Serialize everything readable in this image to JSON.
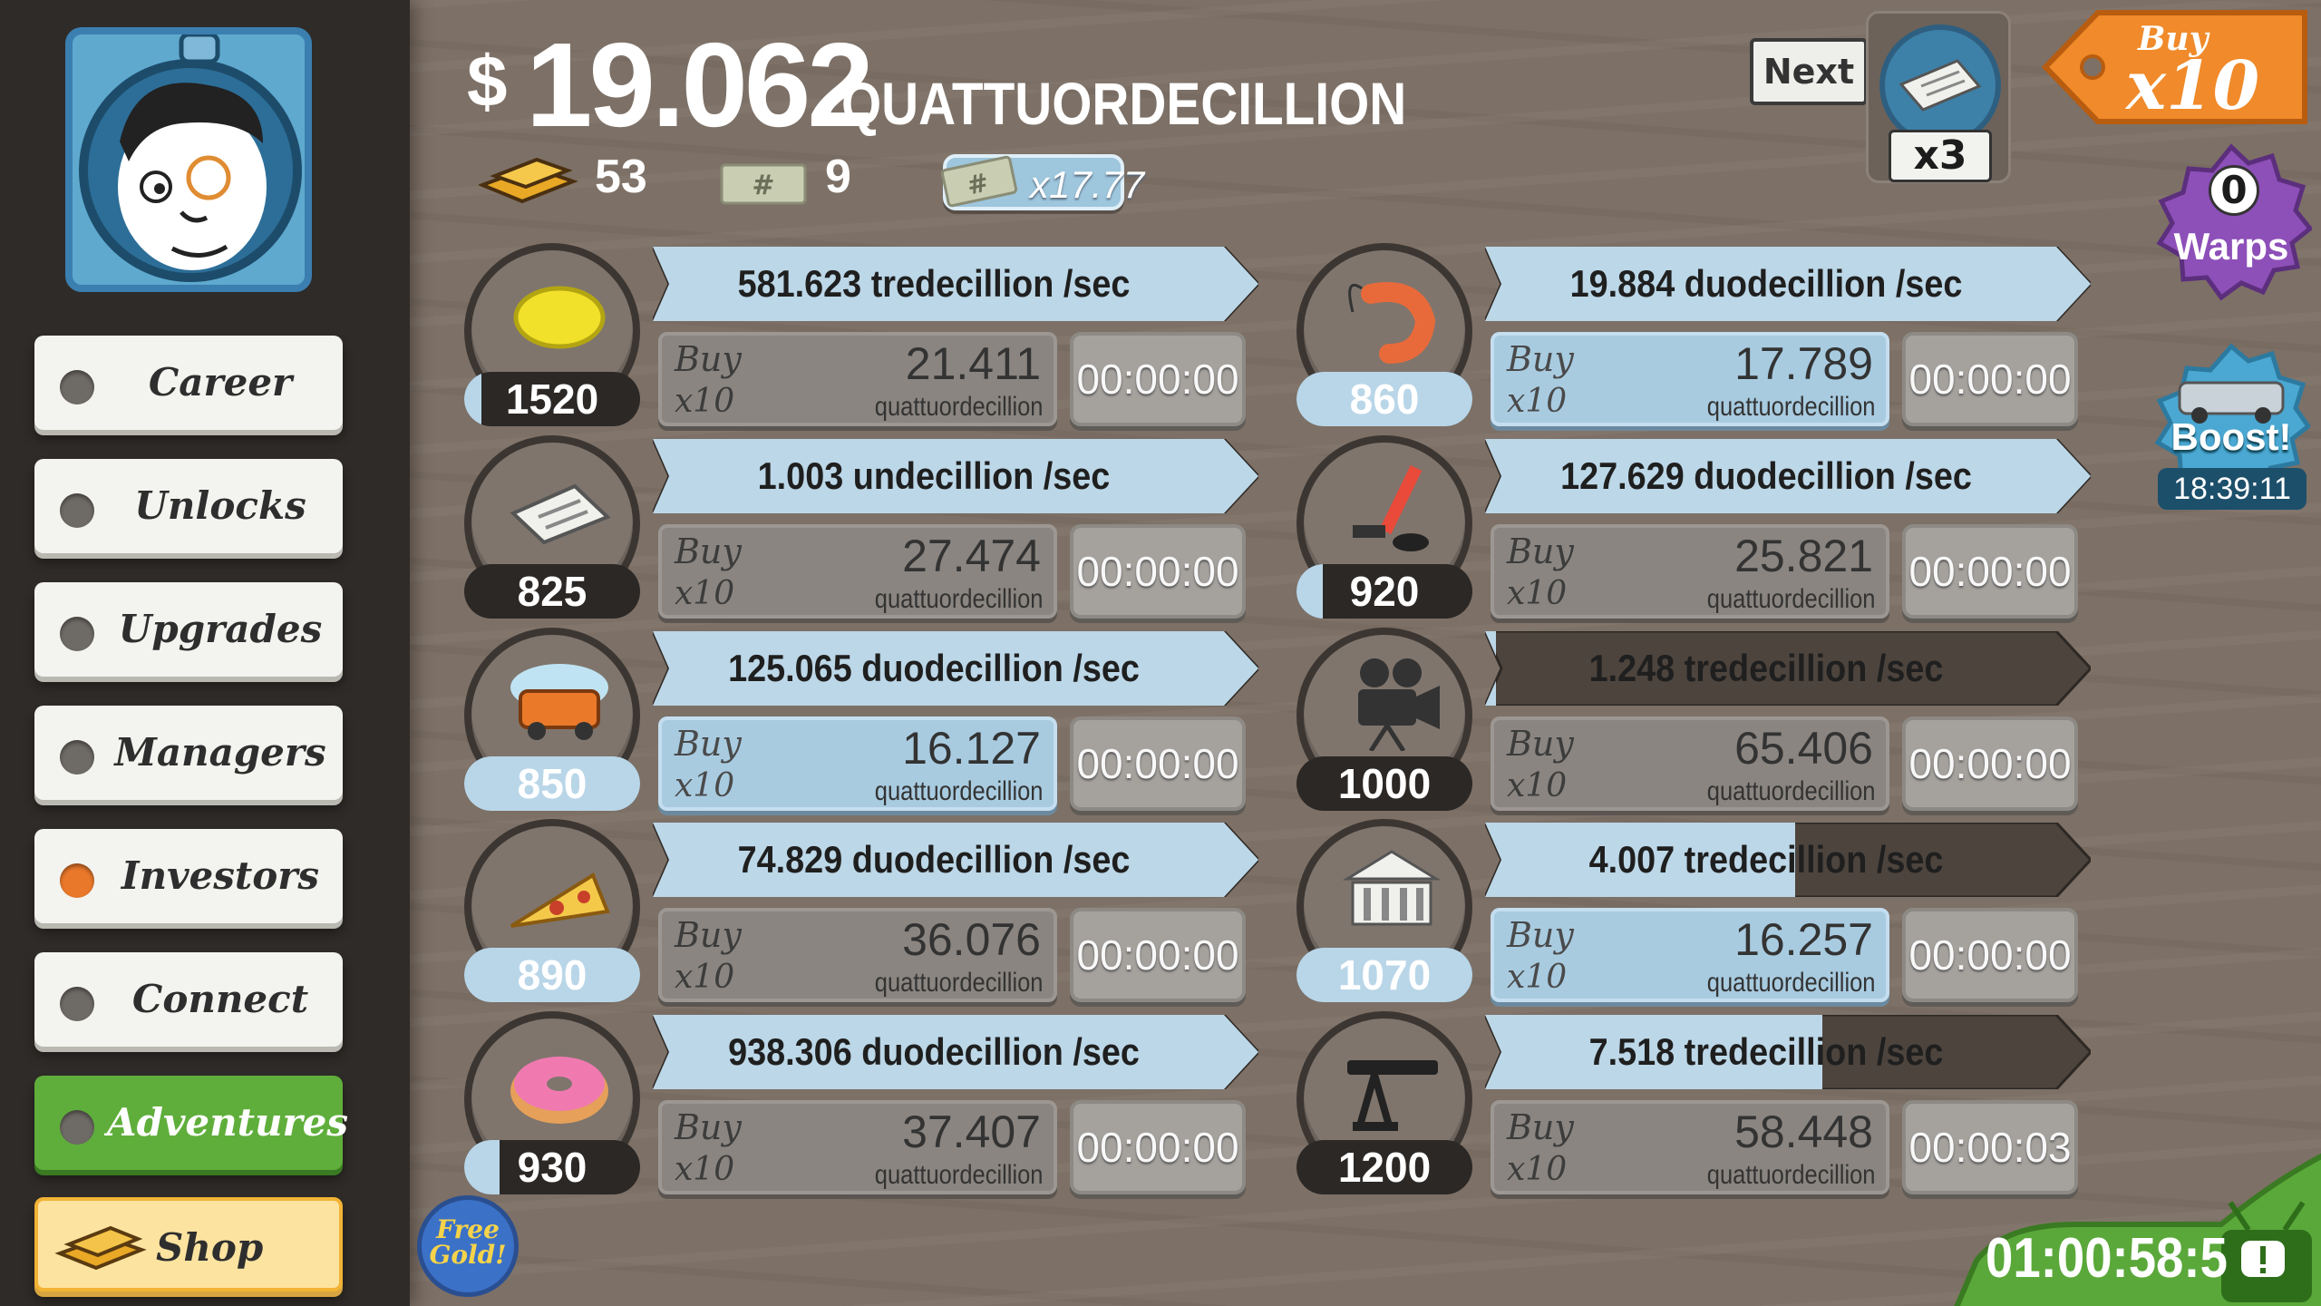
{
  "money": {
    "sign": "$",
    "value": "19.062",
    "unit": "QUATTUORDECILLION"
  },
  "stats": {
    "gold": "53",
    "tickets": "9",
    "multiplier": "x17.77"
  },
  "news": {
    "next_label": "Next",
    "multiplier": "x3"
  },
  "buy_mode": {
    "top": "Buy",
    "main": "x10"
  },
  "warps": {
    "count": "0",
    "label": "Warps"
  },
  "boost": {
    "label": "Boost!",
    "timer": "18:39:11"
  },
  "event_timer": "01:00:58:5",
  "free_gold": {
    "line1": "Free",
    "line2": "Gold!"
  },
  "sidebar": {
    "items": [
      {
        "label": "Career"
      },
      {
        "label": "Unlocks"
      },
      {
        "label": "Upgrades"
      },
      {
        "label": "Managers"
      },
      {
        "label": "Investors"
      },
      {
        "label": "Connect"
      },
      {
        "label": "Adventures"
      },
      {
        "label": "Shop"
      }
    ]
  },
  "businesses": [
    {
      "icon": "lemon-icon",
      "owned": "1520",
      "progress": 0.1,
      "rate": "581.623 tredecillion /sec",
      "buy_word": "Buy",
      "buy_mult": "x10",
      "price": "21.411",
      "unit": "quattuordecillion",
      "timer": "00:00:00",
      "affordable": false
    },
    {
      "icon": "newspaper-icon",
      "owned": "825",
      "progress": 0.0,
      "rate": "1.003 undecillion /sec",
      "buy_word": "Buy",
      "buy_mult": "x10",
      "price": "27.474",
      "unit": "quattuordecillion",
      "timer": "00:00:00",
      "affordable": false
    },
    {
      "icon": "car-wash-icon",
      "owned": "850",
      "progress": 1.0,
      "rate": "125.065 duodecillion /sec",
      "buy_word": "Buy",
      "buy_mult": "x10",
      "price": "16.127",
      "unit": "quattuordecillion",
      "timer": "00:00:00",
      "affordable": true
    },
    {
      "icon": "pizza-icon",
      "owned": "890",
      "progress": 1.0,
      "rate": "74.829 duodecillion /sec",
      "buy_word": "Buy",
      "buy_mult": "x10",
      "price": "36.076",
      "unit": "quattuordecillion",
      "timer": "00:00:00",
      "affordable": false
    },
    {
      "icon": "donut-icon",
      "owned": "930",
      "progress": 0.2,
      "rate": "938.306 duodecillion /sec",
      "buy_word": "Buy",
      "buy_mult": "x10",
      "price": "37.407",
      "unit": "quattuordecillion",
      "timer": "00:00:00",
      "affordable": false
    },
    {
      "icon": "shrimp-icon",
      "owned": "860",
      "progress": 1.0,
      "rate": "19.884 duodecillion /sec",
      "buy_word": "Buy",
      "buy_mult": "x10",
      "price": "17.789",
      "unit": "quattuordecillion",
      "timer": "00:00:00",
      "affordable": true
    },
    {
      "icon": "hockey-icon",
      "owned": "920",
      "progress": 0.15,
      "rate": "127.629 duodecillion /sec",
      "buy_word": "Buy",
      "buy_mult": "x10",
      "price": "25.821",
      "unit": "quattuordecillion",
      "timer": "00:00:00",
      "affordable": false
    },
    {
      "icon": "movie-camera-icon",
      "owned": "1000",
      "progress": 0.0,
      "rate": "1.248 tredecillion /sec",
      "buy_word": "Buy",
      "buy_mult": "x10",
      "price": "65.406",
      "unit": "quattuordecillion",
      "timer": "00:00:00",
      "affordable": false,
      "rate_fill": 0.02
    },
    {
      "icon": "bank-icon",
      "owned": "1070",
      "progress": 1.0,
      "rate": "4.007 tredecillion /sec",
      "buy_word": "Buy",
      "buy_mult": "x10",
      "price": "16.257",
      "unit": "quattuordecillion",
      "timer": "00:00:00",
      "affordable": true,
      "rate_fill": 0.57
    },
    {
      "icon": "oil-rig-icon",
      "owned": "1200",
      "progress": 0.0,
      "rate": "7.518 tredecillion /sec",
      "buy_word": "Buy",
      "buy_mult": "x10",
      "price": "58.448",
      "unit": "quattuordecillion",
      "timer": "00:00:03",
      "affordable": false,
      "rate_fill": 0.62
    }
  ]
}
